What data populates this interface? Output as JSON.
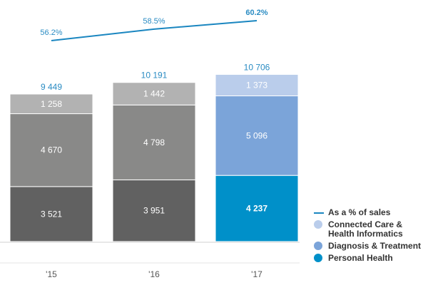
{
  "chart_data": {
    "type": "bar",
    "stacked": true,
    "categories": [
      "'15",
      "'16",
      "'17"
    ],
    "series": [
      {
        "name": "Personal Health",
        "values": [
          3521,
          3951,
          4237
        ]
      },
      {
        "name": "Diagnosis & Treatment",
        "values": [
          4670,
          4798,
          5096
        ]
      },
      {
        "name": "Connected Care & Health Informatics",
        "values": [
          1258,
          1442,
          1373
        ]
      }
    ],
    "totals": [
      9449,
      10191,
      10706
    ],
    "value_labels": [
      [
        "3 521",
        "4 670",
        "1 258"
      ],
      [
        "3 951",
        "4 798",
        "1 442"
      ],
      [
        "4 237",
        "5 096",
        "1 373"
      ]
    ],
    "total_labels": [
      "9 449",
      "10 191",
      "10 706"
    ],
    "line_series": {
      "name": "As a % of sales",
      "values": [
        56.2,
        58.5,
        60.2
      ],
      "labels": [
        "56.2%",
        "58.5%",
        "60.2%"
      ]
    },
    "colors": {
      "grey_shades": [
        "#616161",
        "#898988",
        "#b2b2b2"
      ],
      "highlight_shades": [
        "#0090c9",
        "#7ba4d9",
        "#bacdeb"
      ],
      "line": "#1a86c0",
      "label": "#2b8cc3"
    },
    "legend_placement": "bottom-right",
    "grid": false
  },
  "legend": [
    {
      "label": "As a % of sales",
      "type": "line",
      "color": "#1a86c0"
    },
    {
      "label": "Connected Care & Health Informatics",
      "type": "dot",
      "color": "#bacdeb"
    },
    {
      "label": "Diagnosis & Treatment",
      "type": "dot",
      "color": "#7ba4d9"
    },
    {
      "label": "Personal Health",
      "type": "dot",
      "color": "#0090c9"
    }
  ]
}
